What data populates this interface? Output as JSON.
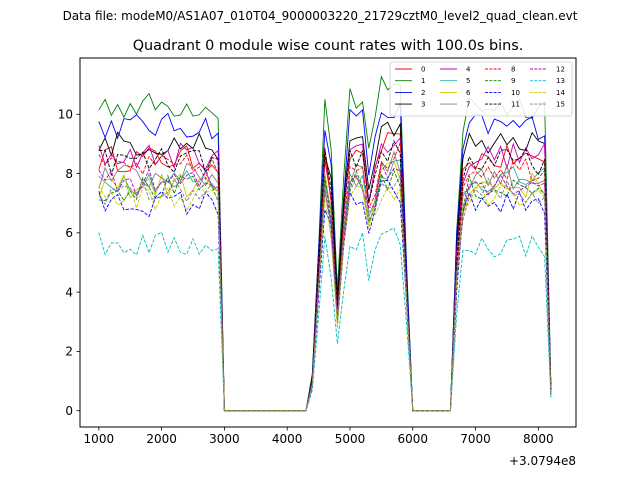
{
  "chart_data": {
    "type": "line",
    "suptitle": "Data file: modeM0/AS1A07_010T04_9000003220_21729cztM0_level2_quad_clean.evt",
    "title": "Quadrant 0 module wise count rates with 100.0s bins.",
    "xlabel": "",
    "ylabel": "",
    "x_offset_label": "+3.0794e8",
    "xlim": [
      700,
      8600
    ],
    "ylim": [
      -0.55,
      11.9
    ],
    "xticks": [
      1000,
      2000,
      3000,
      4000,
      5000,
      6000,
      7000,
      8000
    ],
    "yticks": [
      0,
      2,
      4,
      6,
      8,
      10
    ],
    "legend_position": "top-right",
    "x": [
      1000,
      1100,
      1200,
      1300,
      1400,
      1500,
      1600,
      1700,
      1800,
      1900,
      2000,
      2100,
      2200,
      2300,
      2400,
      2500,
      2600,
      2700,
      2800,
      2900,
      3000,
      3100,
      3200,
      3300,
      3400,
      3500,
      3600,
      3700,
      3800,
      3900,
      4000,
      4100,
      4200,
      4300,
      4400,
      4500,
      4600,
      4700,
      4800,
      4900,
      5000,
      5100,
      5200,
      5300,
      5400,
      5500,
      5600,
      5700,
      5800,
      5900,
      6000,
      6100,
      6200,
      6300,
      6400,
      6500,
      6600,
      6700,
      6800,
      6900,
      7000,
      7100,
      7200,
      7300,
      7400,
      7500,
      7600,
      7700,
      7800,
      7900,
      8000,
      8100,
      8200
    ],
    "series": [
      {
        "name": "0",
        "color": "#ff0000",
        "dash": "solid",
        "base": 8.5
      },
      {
        "name": "1",
        "color": "#008000",
        "dash": "solid",
        "base": 10.3
      },
      {
        "name": "2",
        "color": "#0000ff",
        "dash": "solid",
        "base": 9.6
      },
      {
        "name": "3",
        "color": "#000000",
        "dash": "solid",
        "base": 9.0
      },
      {
        "name": "4",
        "color": "#bf00bf",
        "dash": "solid",
        "base": 8.6
      },
      {
        "name": "5",
        "color": "#20b2aa",
        "dash": "solid",
        "base": 7.8
      },
      {
        "name": "6",
        "color": "#c8c800",
        "dash": "solid",
        "base": 7.6
      },
      {
        "name": "7",
        "color": "#808080",
        "dash": "solid",
        "base": 7.9
      },
      {
        "name": "8",
        "color": "#ff0000",
        "dash": "dashed",
        "base": 8.2
      },
      {
        "name": "9",
        "color": "#008000",
        "dash": "dashed",
        "base": 7.5
      },
      {
        "name": "10",
        "color": "#0000ff",
        "dash": "dashed",
        "base": 7.0
      },
      {
        "name": "11",
        "color": "#000000",
        "dash": "dashed",
        "base": 8.4
      },
      {
        "name": "12",
        "color": "#bf00bf",
        "dash": "dashed",
        "base": 7.7
      },
      {
        "name": "13",
        "color": "#00bfbf",
        "dash": "dashed",
        "base": 5.6
      },
      {
        "name": "14",
        "color": "#c8c800",
        "dash": "dashed",
        "base": 7.2
      },
      {
        "name": "15",
        "color": "#808080",
        "dash": "dashed",
        "base": 7.4
      }
    ]
  }
}
